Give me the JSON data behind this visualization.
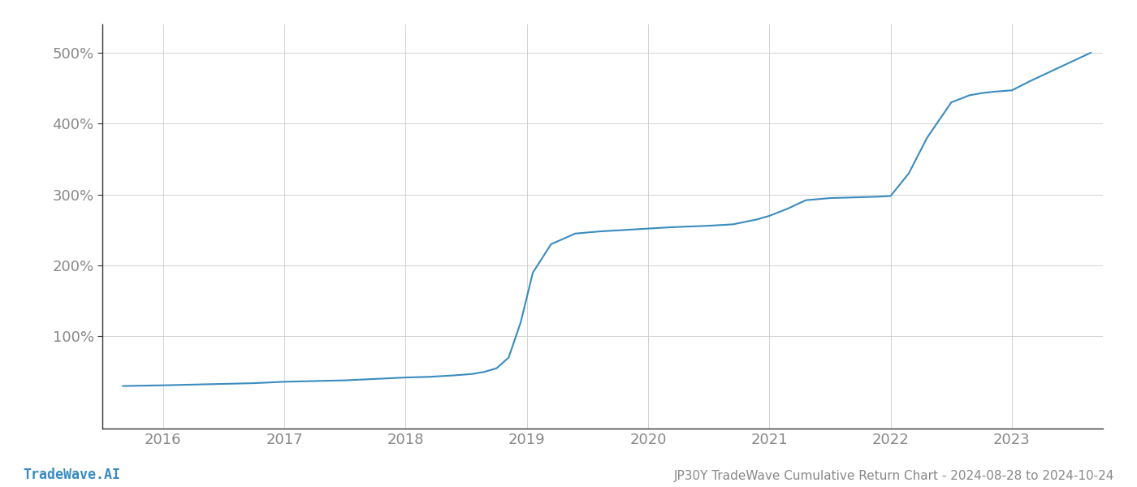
{
  "title": "JP30Y TradeWave Cumulative Return Chart - 2024-08-28 to 2024-10-24",
  "watermark": "TradeWave.AI",
  "line_color": "#3a8bbf",
  "line_width": 1.5,
  "background_color": "#ffffff",
  "grid_color": "#cccccc",
  "x_values": [
    2015.67,
    2016.0,
    2016.25,
    2016.5,
    2016.75,
    2017.0,
    2017.25,
    2017.5,
    2017.75,
    2018.0,
    2018.2,
    2018.4,
    2018.55,
    2018.65,
    2018.75,
    2018.85,
    2018.95,
    2019.05,
    2019.2,
    2019.4,
    2019.6,
    2019.8,
    2020.0,
    2020.2,
    2020.5,
    2020.7,
    2020.9,
    2021.0,
    2021.15,
    2021.3,
    2021.5,
    2021.7,
    2021.9,
    2022.0,
    2022.15,
    2022.3,
    2022.5,
    2022.65,
    2022.75,
    2022.85,
    2023.0,
    2023.15,
    2023.4,
    2023.65
  ],
  "y_values": [
    30,
    31,
    32,
    33,
    34,
    36,
    37,
    38,
    40,
    42,
    43,
    45,
    47,
    50,
    55,
    70,
    120,
    190,
    230,
    245,
    248,
    250,
    252,
    254,
    256,
    258,
    265,
    270,
    280,
    292,
    295,
    296,
    297,
    298,
    330,
    380,
    430,
    440,
    443,
    445,
    447,
    460,
    480,
    500
  ],
  "xlim": [
    2015.5,
    2023.75
  ],
  "ylim": [
    -30,
    540
  ],
  "yticks": [
    100,
    200,
    300,
    400,
    500
  ],
  "ytick_labels": [
    "100%",
    "200%",
    "300%",
    "400%",
    "500%"
  ],
  "xticks": [
    2016,
    2017,
    2018,
    2019,
    2020,
    2021,
    2022,
    2023
  ],
  "xtick_labels": [
    "2016",
    "2017",
    "2018",
    "2019",
    "2020",
    "2021",
    "2022",
    "2023"
  ],
  "tick_fontsize": 13,
  "label_color": "#888888",
  "watermark_color": "#3a8bbf",
  "watermark_fontsize": 12,
  "title_fontsize": 11,
  "spine_color": "#aaaaaa",
  "left_spine_color": "#333333"
}
